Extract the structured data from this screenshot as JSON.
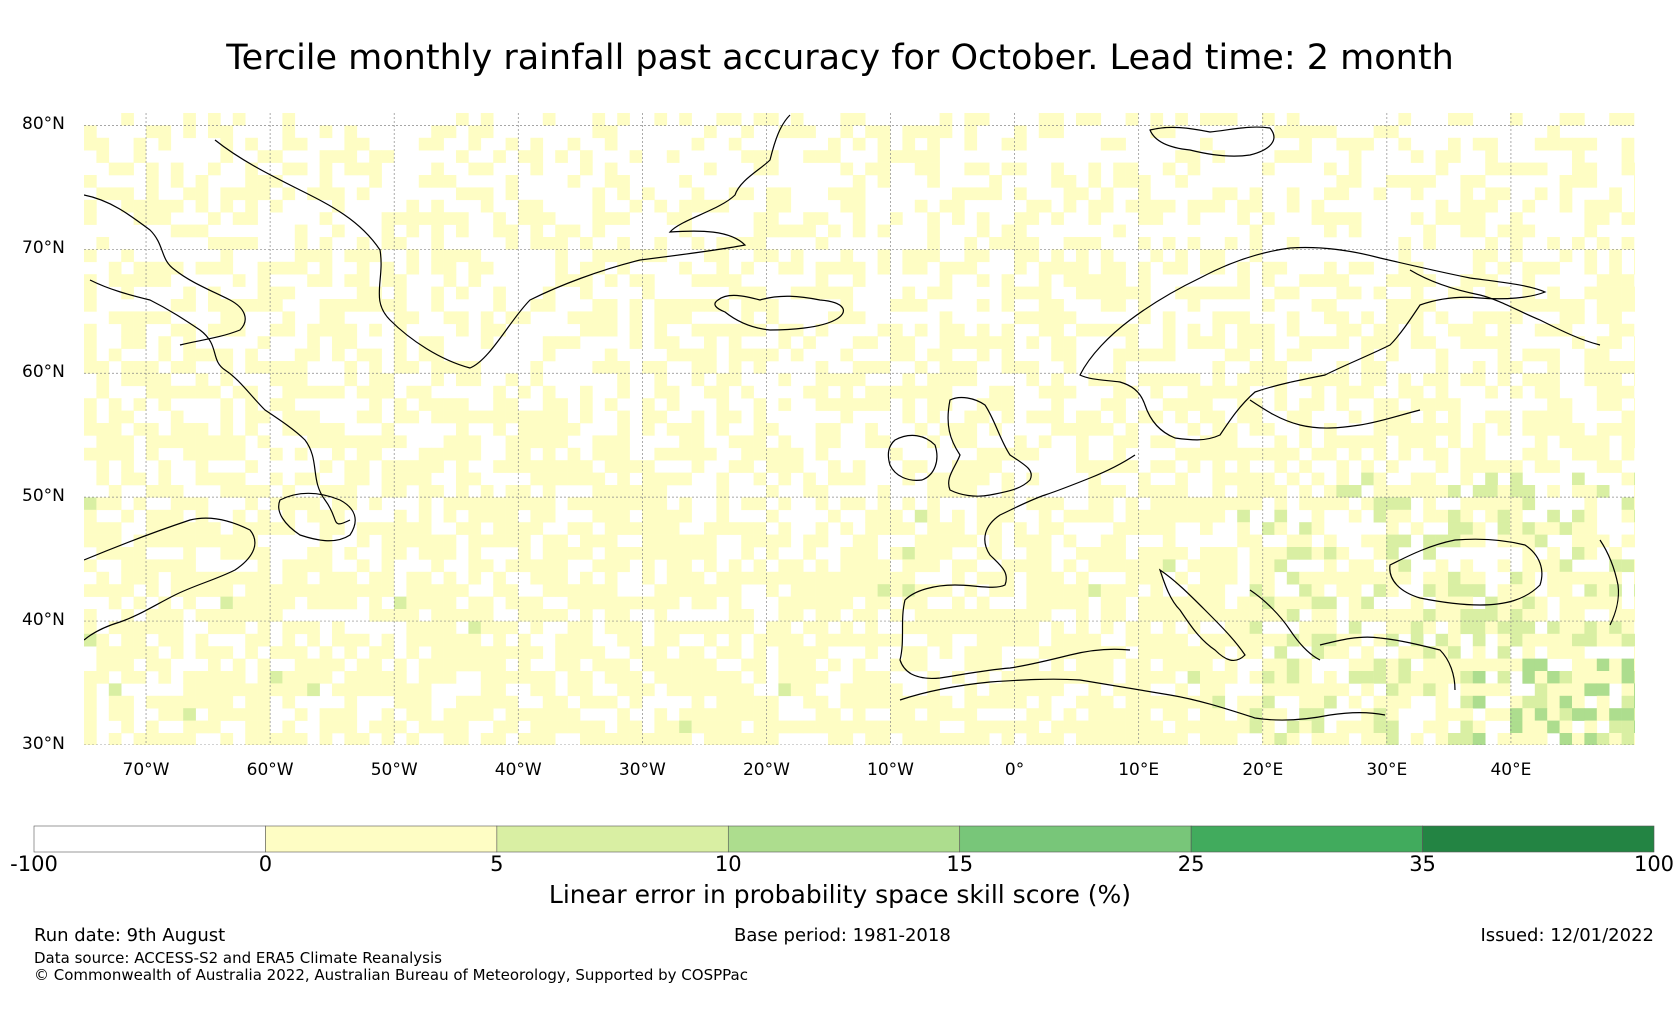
{
  "title": "Tercile monthly rainfall past accuracy for October. Lead time: 2 month",
  "map": {
    "region": "North Atlantic and Europe",
    "lon_range": [
      -75,
      50
    ],
    "lat_range": [
      30,
      81
    ],
    "lat_labels": [
      "80°N",
      "70°N",
      "60°N",
      "50°N",
      "40°N",
      "30°N"
    ],
    "lon_labels": [
      "70°W",
      "60°W",
      "50°W",
      "40°W",
      "30°W",
      "20°W",
      "10°W",
      "0°",
      "10°E",
      "20°E",
      "30°E",
      "40°E"
    ],
    "gridlines": true,
    "coastline_color": "#000000",
    "dominant_class": "0-5",
    "higher_skill_areas": "Southern Russia, Black Sea coast, Middle East, Balkans, scattered Atlantic pixels"
  },
  "colorbar": {
    "ticks": [
      "-100",
      "0",
      "5",
      "10",
      "15",
      "25",
      "35",
      "100"
    ],
    "colors": [
      "#ffffff",
      "#fefdc4",
      "#d9efa3",
      "#addd8e",
      "#78c679",
      "#41ab5d",
      "#238443"
    ],
    "label": "Linear error in probability space skill score (%)"
  },
  "footer": {
    "run_date": "Run date: 9th August",
    "base_period": "Base period: 1981-2018",
    "issued": "Issued: 12/01/2022",
    "data_source": "Data source: ACCESS-S2 and ERA5 Climate Reanalysis",
    "copyright": "© Commonwealth of Australia 2022, Australian Bureau of Meteorology, Supported by COSPPac"
  }
}
